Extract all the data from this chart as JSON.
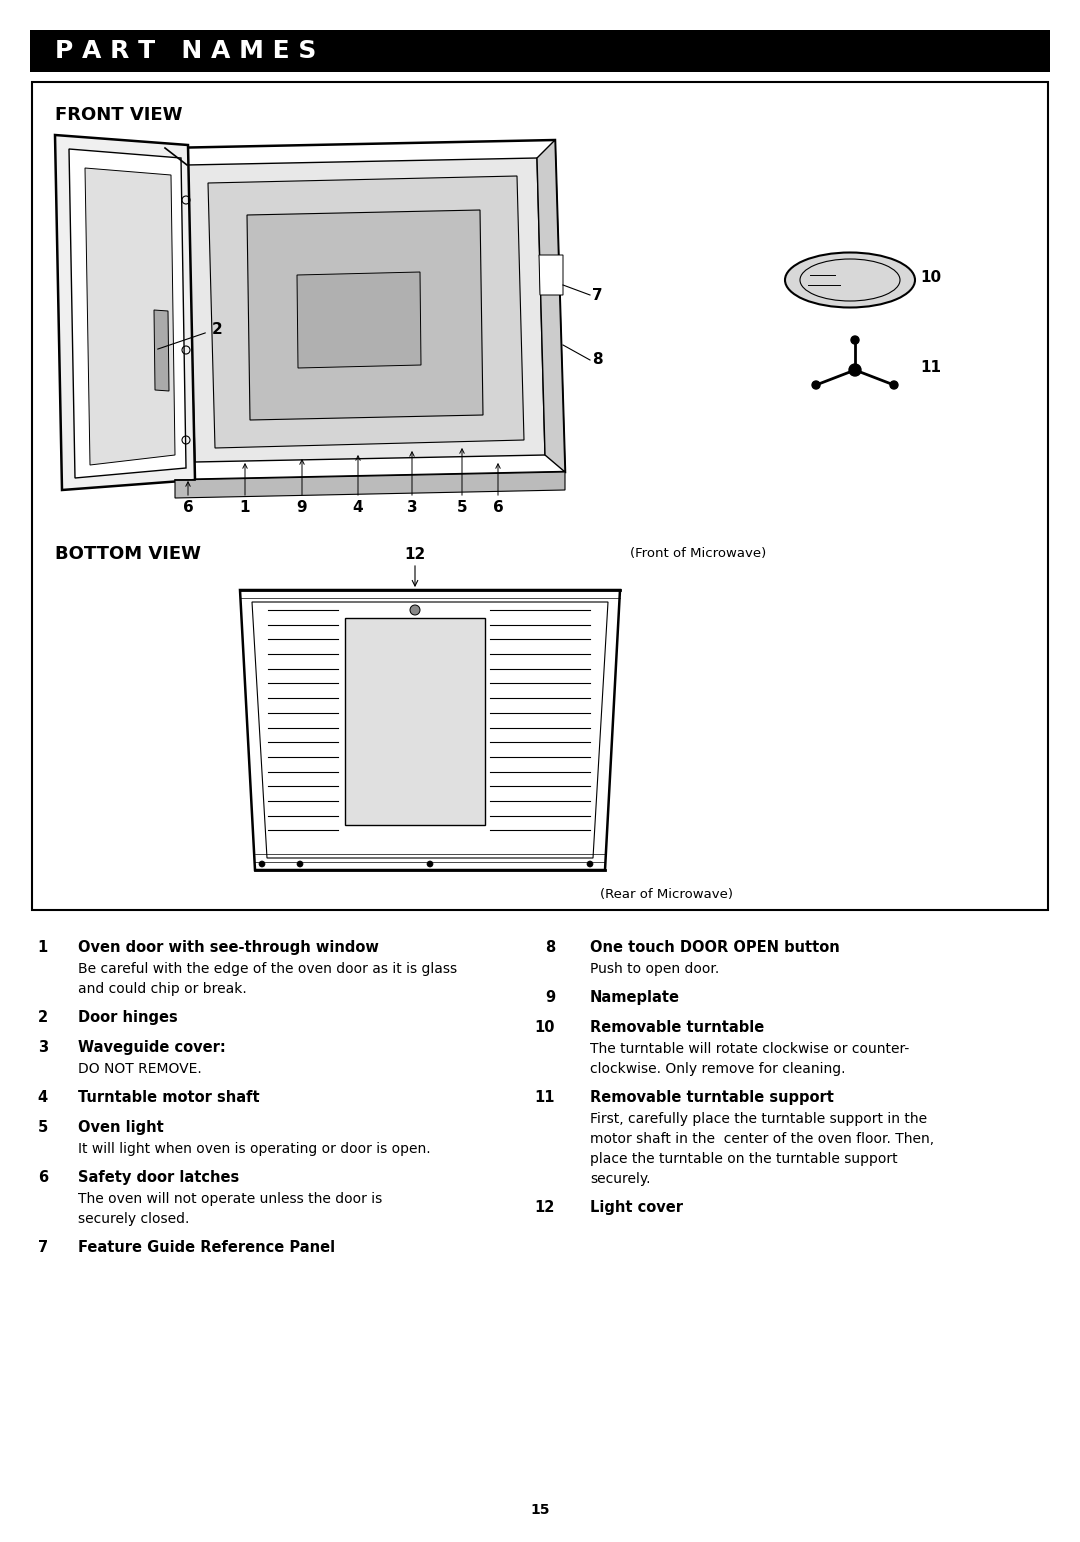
{
  "title": "P A R T   N A M E S",
  "title_bg": "#000000",
  "title_color": "#ffffff",
  "page_bg": "#ffffff",
  "section1_title": "FRONT VIEW",
  "section2_title": "BOTTOM VIEW",
  "items_left": [
    {
      "num": "1",
      "bold_text": "Oven door with see-through window",
      "sub_text": "Be careful with the edge of the oven door as it is glass\nand could chip or break."
    },
    {
      "num": "2",
      "bold_text": "Door hinges",
      "sub_text": ""
    },
    {
      "num": "3",
      "bold_text": "Waveguide cover:",
      "sub_text": "DO NOT REMOVE."
    },
    {
      "num": "4",
      "bold_text": "Turntable motor shaft",
      "sub_text": ""
    },
    {
      "num": "5",
      "bold_text": "Oven light",
      "sub_text": "It will light when oven is operating or door is open."
    },
    {
      "num": "6",
      "bold_text": "Safety door latches",
      "sub_text": "The oven will not operate unless the door is\nsecurely closed."
    },
    {
      "num": "7",
      "bold_text": "Feature Guide Reference Panel",
      "sub_text": ""
    }
  ],
  "items_right": [
    {
      "num": "8",
      "bold_text": "One touch DOOR OPEN button",
      "sub_text": "Push to open door."
    },
    {
      "num": "9",
      "bold_text": "Nameplate",
      "sub_text": ""
    },
    {
      "num": "10",
      "bold_text": "Removable turntable",
      "sub_text": "The turntable will rotate clockwise or counter-\nclockwise. Only remove for cleaning."
    },
    {
      "num": "11",
      "bold_text": "Removable turntable support",
      "sub_text": "First, carefully place the turntable support in the\nmotor shaft in the  center of the oven floor. Then,\nplace the turntable on the turntable support\nsecurely."
    },
    {
      "num": "12",
      "bold_text": "Light cover",
      "sub_text": ""
    }
  ],
  "page_number": "15"
}
